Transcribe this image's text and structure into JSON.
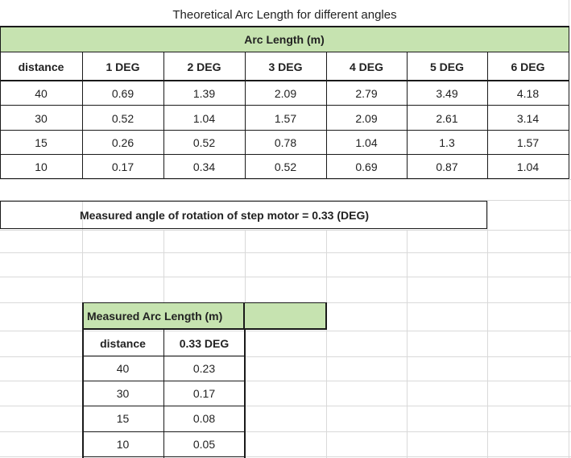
{
  "theoretical": {
    "title": "Theoretical Arc Length for different angles",
    "subheader": "Arc Length (m)",
    "headers": [
      "distance",
      "1 DEG",
      "2 DEG",
      "3 DEG",
      "4 DEG",
      "5 DEG",
      "6 DEG"
    ],
    "rows": [
      [
        "40",
        "0.69",
        "1.39",
        "2.09",
        "2.79",
        "3.49",
        "4.18"
      ],
      [
        "30",
        "0.52",
        "1.04",
        "1.57",
        "2.09",
        "2.61",
        "3.14"
      ],
      [
        "15",
        "0.26",
        "0.52",
        "0.78",
        "1.04",
        "1.3",
        "1.57"
      ],
      [
        "10",
        "0.17",
        "0.34",
        "0.52",
        "0.69",
        "0.87",
        "1.04"
      ]
    ]
  },
  "note": "Measured angle of rotation of step motor = 0.33 (DEG)",
  "measured": {
    "title": "Measured Arc Length (m)",
    "headers": [
      "distance",
      "0.33 DEG"
    ],
    "rows": [
      [
        "40",
        "0.23"
      ],
      [
        "30",
        "0.17"
      ],
      [
        "15",
        "0.08"
      ],
      [
        "10",
        "0.05"
      ]
    ]
  }
}
